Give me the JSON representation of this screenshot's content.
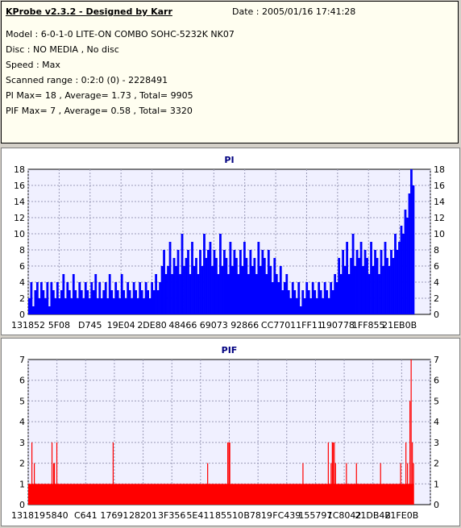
{
  "header": {
    "title": "KProbe v2.3.2 - Designed by Karr",
    "date": "Date : 2005/01/16 17:41:28",
    "lines": [
      "Model : 6-0-1-0 LITE-ON COMBO SOHC-5232K NK07",
      "Disc : NO MEDIA , No disc",
      "Speed : Max",
      "Scanned range : 0:2:0 (0) - 2228491",
      "PI Max= 18 , Average= 1.73 , Total= 9905",
      "PIF Max= 7 , Average= 0.58 , Total= 3320"
    ]
  },
  "chart_data": [
    {
      "type": "bar",
      "title": "PI",
      "color": "#0000ff",
      "ylim": [
        0,
        18
      ],
      "yticks": [
        0,
        2,
        4,
        6,
        8,
        10,
        12,
        14,
        16,
        18
      ],
      "xticks": [
        "131852",
        "5F08",
        "D745",
        "19E04",
        "2DE80",
        "48466",
        "69073",
        "92866",
        "CC770",
        "11FF11",
        "190778",
        "1FF855",
        "21EB0B"
      ],
      "grid": true,
      "series": [
        {
          "x": 0.0,
          "y": 2
        },
        {
          "x": 0.005,
          "y": 4
        },
        {
          "x": 0.01,
          "y": 1
        },
        {
          "x": 0.015,
          "y": 3
        },
        {
          "x": 0.02,
          "y": 4
        },
        {
          "x": 0.025,
          "y": 2
        },
        {
          "x": 0.03,
          "y": 4
        },
        {
          "x": 0.035,
          "y": 3
        },
        {
          "x": 0.04,
          "y": 2
        },
        {
          "x": 0.045,
          "y": 4
        },
        {
          "x": 0.05,
          "y": 1
        },
        {
          "x": 0.055,
          "y": 4
        },
        {
          "x": 0.06,
          "y": 3
        },
        {
          "x": 0.065,
          "y": 2
        },
        {
          "x": 0.07,
          "y": 4
        },
        {
          "x": 0.075,
          "y": 2
        },
        {
          "x": 0.08,
          "y": 3
        },
        {
          "x": 0.085,
          "y": 5
        },
        {
          "x": 0.09,
          "y": 2
        },
        {
          "x": 0.095,
          "y": 4
        },
        {
          "x": 0.1,
          "y": 3
        },
        {
          "x": 0.105,
          "y": 2
        },
        {
          "x": 0.11,
          "y": 5
        },
        {
          "x": 0.115,
          "y": 3
        },
        {
          "x": 0.12,
          "y": 2
        },
        {
          "x": 0.125,
          "y": 4
        },
        {
          "x": 0.13,
          "y": 3
        },
        {
          "x": 0.135,
          "y": 2
        },
        {
          "x": 0.14,
          "y": 4
        },
        {
          "x": 0.145,
          "y": 3
        },
        {
          "x": 0.15,
          "y": 2
        },
        {
          "x": 0.155,
          "y": 4
        },
        {
          "x": 0.16,
          "y": 3
        },
        {
          "x": 0.165,
          "y": 5
        },
        {
          "x": 0.17,
          "y": 2
        },
        {
          "x": 0.175,
          "y": 4
        },
        {
          "x": 0.18,
          "y": 2
        },
        {
          "x": 0.185,
          "y": 3
        },
        {
          "x": 0.19,
          "y": 4
        },
        {
          "x": 0.195,
          "y": 2
        },
        {
          "x": 0.2,
          "y": 5
        },
        {
          "x": 0.205,
          "y": 3
        },
        {
          "x": 0.21,
          "y": 2
        },
        {
          "x": 0.215,
          "y": 4
        },
        {
          "x": 0.22,
          "y": 3
        },
        {
          "x": 0.225,
          "y": 2
        },
        {
          "x": 0.23,
          "y": 5
        },
        {
          "x": 0.235,
          "y": 3
        },
        {
          "x": 0.24,
          "y": 2
        },
        {
          "x": 0.245,
          "y": 4
        },
        {
          "x": 0.25,
          "y": 3
        },
        {
          "x": 0.255,
          "y": 2
        },
        {
          "x": 0.26,
          "y": 4
        },
        {
          "x": 0.265,
          "y": 3
        },
        {
          "x": 0.27,
          "y": 2
        },
        {
          "x": 0.275,
          "y": 4
        },
        {
          "x": 0.28,
          "y": 3
        },
        {
          "x": 0.285,
          "y": 2
        },
        {
          "x": 0.29,
          "y": 4
        },
        {
          "x": 0.295,
          "y": 3
        },
        {
          "x": 0.3,
          "y": 2
        },
        {
          "x": 0.305,
          "y": 4
        },
        {
          "x": 0.31,
          "y": 3
        },
        {
          "x": 0.315,
          "y": 5
        },
        {
          "x": 0.32,
          "y": 3
        },
        {
          "x": 0.325,
          "y": 4
        },
        {
          "x": 0.33,
          "y": 6
        },
        {
          "x": 0.335,
          "y": 8
        },
        {
          "x": 0.34,
          "y": 5
        },
        {
          "x": 0.345,
          "y": 6
        },
        {
          "x": 0.35,
          "y": 9
        },
        {
          "x": 0.355,
          "y": 5
        },
        {
          "x": 0.36,
          "y": 7
        },
        {
          "x": 0.365,
          "y": 6
        },
        {
          "x": 0.37,
          "y": 8
        },
        {
          "x": 0.375,
          "y": 5
        },
        {
          "x": 0.38,
          "y": 10
        },
        {
          "x": 0.385,
          "y": 6
        },
        {
          "x": 0.39,
          "y": 7
        },
        {
          "x": 0.395,
          "y": 8
        },
        {
          "x": 0.4,
          "y": 5
        },
        {
          "x": 0.405,
          "y": 9
        },
        {
          "x": 0.41,
          "y": 6
        },
        {
          "x": 0.415,
          "y": 7
        },
        {
          "x": 0.42,
          "y": 5
        },
        {
          "x": 0.425,
          "y": 8
        },
        {
          "x": 0.43,
          "y": 6
        },
        {
          "x": 0.435,
          "y": 10
        },
        {
          "x": 0.44,
          "y": 7
        },
        {
          "x": 0.445,
          "y": 8
        },
        {
          "x": 0.45,
          "y": 9
        },
        {
          "x": 0.455,
          "y": 6
        },
        {
          "x": 0.46,
          "y": 8
        },
        {
          "x": 0.465,
          "y": 7
        },
        {
          "x": 0.47,
          "y": 5
        },
        {
          "x": 0.475,
          "y": 10
        },
        {
          "x": 0.48,
          "y": 6
        },
        {
          "x": 0.485,
          "y": 8
        },
        {
          "x": 0.49,
          "y": 7
        },
        {
          "x": 0.495,
          "y": 5
        },
        {
          "x": 0.5,
          "y": 9
        },
        {
          "x": 0.505,
          "y": 6
        },
        {
          "x": 0.51,
          "y": 8
        },
        {
          "x": 0.515,
          "y": 7
        },
        {
          "x": 0.52,
          "y": 5
        },
        {
          "x": 0.525,
          "y": 8
        },
        {
          "x": 0.53,
          "y": 6
        },
        {
          "x": 0.535,
          "y": 9
        },
        {
          "x": 0.54,
          "y": 7
        },
        {
          "x": 0.545,
          "y": 5
        },
        {
          "x": 0.55,
          "y": 8
        },
        {
          "x": 0.555,
          "y": 6
        },
        {
          "x": 0.56,
          "y": 7
        },
        {
          "x": 0.565,
          "y": 5
        },
        {
          "x": 0.57,
          "y": 9
        },
        {
          "x": 0.575,
          "y": 6
        },
        {
          "x": 0.58,
          "y": 8
        },
        {
          "x": 0.585,
          "y": 7
        },
        {
          "x": 0.59,
          "y": 5
        },
        {
          "x": 0.595,
          "y": 8
        },
        {
          "x": 0.6,
          "y": 6
        },
        {
          "x": 0.605,
          "y": 4
        },
        {
          "x": 0.61,
          "y": 7
        },
        {
          "x": 0.615,
          "y": 5
        },
        {
          "x": 0.62,
          "y": 4
        },
        {
          "x": 0.625,
          "y": 6
        },
        {
          "x": 0.63,
          "y": 3
        },
        {
          "x": 0.635,
          "y": 4
        },
        {
          "x": 0.64,
          "y": 5
        },
        {
          "x": 0.645,
          "y": 3
        },
        {
          "x": 0.65,
          "y": 2
        },
        {
          "x": 0.655,
          "y": 4
        },
        {
          "x": 0.66,
          "y": 3
        },
        {
          "x": 0.665,
          "y": 2
        },
        {
          "x": 0.67,
          "y": 4
        },
        {
          "x": 0.675,
          "y": 1
        },
        {
          "x": 0.68,
          "y": 3
        },
        {
          "x": 0.685,
          "y": 2
        },
        {
          "x": 0.69,
          "y": 4
        },
        {
          "x": 0.695,
          "y": 3
        },
        {
          "x": 0.7,
          "y": 2
        },
        {
          "x": 0.705,
          "y": 4
        },
        {
          "x": 0.71,
          "y": 3
        },
        {
          "x": 0.715,
          "y": 2
        },
        {
          "x": 0.72,
          "y": 4
        },
        {
          "x": 0.725,
          "y": 3
        },
        {
          "x": 0.73,
          "y": 2
        },
        {
          "x": 0.735,
          "y": 4
        },
        {
          "x": 0.74,
          "y": 3
        },
        {
          "x": 0.745,
          "y": 2
        },
        {
          "x": 0.75,
          "y": 4
        },
        {
          "x": 0.755,
          "y": 3
        },
        {
          "x": 0.76,
          "y": 5
        },
        {
          "x": 0.765,
          "y": 4
        },
        {
          "x": 0.77,
          "y": 7
        },
        {
          "x": 0.775,
          "y": 5
        },
        {
          "x": 0.78,
          "y": 8
        },
        {
          "x": 0.785,
          "y": 6
        },
        {
          "x": 0.79,
          "y": 9
        },
        {
          "x": 0.795,
          "y": 5
        },
        {
          "x": 0.8,
          "y": 7
        },
        {
          "x": 0.805,
          "y": 10
        },
        {
          "x": 0.81,
          "y": 6
        },
        {
          "x": 0.815,
          "y": 8
        },
        {
          "x": 0.82,
          "y": 7
        },
        {
          "x": 0.825,
          "y": 9
        },
        {
          "x": 0.83,
          "y": 6
        },
        {
          "x": 0.835,
          "y": 8
        },
        {
          "x": 0.84,
          "y": 7
        },
        {
          "x": 0.845,
          "y": 5
        },
        {
          "x": 0.85,
          "y": 9
        },
        {
          "x": 0.855,
          "y": 6
        },
        {
          "x": 0.86,
          "y": 8
        },
        {
          "x": 0.865,
          "y": 7
        },
        {
          "x": 0.87,
          "y": 5
        },
        {
          "x": 0.875,
          "y": 8
        },
        {
          "x": 0.88,
          "y": 6
        },
        {
          "x": 0.885,
          "y": 9
        },
        {
          "x": 0.89,
          "y": 7
        },
        {
          "x": 0.895,
          "y": 6
        },
        {
          "x": 0.9,
          "y": 8
        },
        {
          "x": 0.905,
          "y": 7
        },
        {
          "x": 0.91,
          "y": 10
        },
        {
          "x": 0.915,
          "y": 8
        },
        {
          "x": 0.92,
          "y": 9
        },
        {
          "x": 0.925,
          "y": 11
        },
        {
          "x": 0.93,
          "y": 10
        },
        {
          "x": 0.935,
          "y": 13
        },
        {
          "x": 0.94,
          "y": 12
        },
        {
          "x": 0.945,
          "y": 15
        },
        {
          "x": 0.95,
          "y": 18
        },
        {
          "x": 0.955,
          "y": 16
        }
      ]
    },
    {
      "type": "bar",
      "title": "PIF",
      "color": "#ff0000",
      "ylim": [
        0,
        7
      ],
      "yticks": [
        0,
        1,
        2,
        3,
        4,
        5,
        6,
        7
      ],
      "xticks": [
        "131819",
        "5840",
        "C641",
        "17691",
        "28201",
        "3F356",
        "5E411",
        "85510",
        "B7819",
        "FC439",
        "155797",
        "1C8042",
        "21DB4B",
        "21FE0B"
      ],
      "grid": true,
      "baseline": 1,
      "baseline_end": 0.958,
      "spikes": [
        {
          "x": 0.008,
          "y": 3
        },
        {
          "x": 0.014,
          "y": 2
        },
        {
          "x": 0.058,
          "y": 3
        },
        {
          "x": 0.062,
          "y": 2
        },
        {
          "x": 0.064,
          "y": 2
        },
        {
          "x": 0.07,
          "y": 3
        },
        {
          "x": 0.21,
          "y": 3
        },
        {
          "x": 0.445,
          "y": 2
        },
        {
          "x": 0.495,
          "y": 3
        },
        {
          "x": 0.498,
          "y": 3
        },
        {
          "x": 0.5,
          "y": 3
        },
        {
          "x": 0.682,
          "y": 2
        },
        {
          "x": 0.745,
          "y": 3
        },
        {
          "x": 0.752,
          "y": 2
        },
        {
          "x": 0.755,
          "y": 3
        },
        {
          "x": 0.757,
          "y": 3
        },
        {
          "x": 0.76,
          "y": 3
        },
        {
          "x": 0.763,
          "y": 2
        },
        {
          "x": 0.79,
          "y": 2
        },
        {
          "x": 0.815,
          "y": 2
        },
        {
          "x": 0.875,
          "y": 2
        },
        {
          "x": 0.925,
          "y": 2
        },
        {
          "x": 0.938,
          "y": 3
        },
        {
          "x": 0.942,
          "y": 2
        },
        {
          "x": 0.948,
          "y": 5
        },
        {
          "x": 0.951,
          "y": 7
        },
        {
          "x": 0.954,
          "y": 3
        },
        {
          "x": 0.957,
          "y": 2
        }
      ]
    }
  ]
}
